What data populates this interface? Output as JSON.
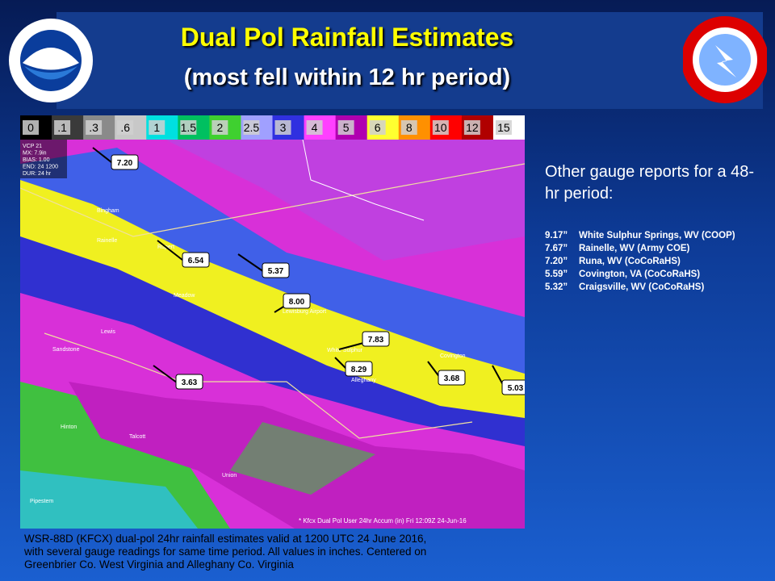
{
  "header": {
    "title": "Dual Pol Rainfall Estimates",
    "subtitle": "(most fell within 12 hr period)"
  },
  "scale": [
    {
      "label": "0",
      "color": "#000000"
    },
    {
      "label": ".1",
      "color": "#3a3a3a"
    },
    {
      "label": ".3",
      "color": "#8a8a8a"
    },
    {
      "label": ".6",
      "color": "#c8c8c8"
    },
    {
      "label": "1",
      "color": "#00e0e0"
    },
    {
      "label": "1.5",
      "color": "#00c060"
    },
    {
      "label": "2",
      "color": "#3fd030"
    },
    {
      "label": "2.5",
      "color": "#a0a0ff"
    },
    {
      "label": "3",
      "color": "#3030e0"
    },
    {
      "label": "4",
      "color": "#ff40ff"
    },
    {
      "label": "5",
      "color": "#b000b0"
    },
    {
      "label": "6",
      "color": "#ffff30"
    },
    {
      "label": "8",
      "color": "#ff9000"
    },
    {
      "label": "10",
      "color": "#ff0000"
    },
    {
      "label": "12",
      "color": "#b00000"
    },
    {
      "label": "15",
      "color": "#ffffff"
    }
  ],
  "radar_info": [
    "VCP 21",
    "MX: 7.9in",
    "BIAS: 1.00",
    "END: 24 1200",
    "DUR: 24 hr"
  ],
  "gauges": [
    "7.20",
    "6.54",
    "5.37",
    "8.00",
    "7.83",
    "8.29",
    "3.68",
    "5.03",
    "3.63"
  ],
  "places": [
    "Bingham",
    "Rainelle",
    "Rupert",
    "Meadow",
    "Lewisburg Airport",
    "White Sulphur",
    "Alleghany",
    "Covington",
    "Lewis",
    "Sandstone",
    "Hinton",
    "Talcott",
    "Union",
    "Pipestem"
  ],
  "footer_stamp": "* Kfcx Dual Pol User 24hr Accum (in) Fri 12:09Z 24-Jun-16",
  "side": {
    "heading": "Other gauge reports for a 48-hr period:",
    "rows": [
      [
        "9.17”",
        "White Sulphur Springs, WV (COOP)"
      ],
      [
        "7.67”",
        "Rainelle, WV (Army COE)"
      ],
      [
        "7.20”",
        "Runa, WV (CoCoRaHS)"
      ],
      [
        "5.59”",
        "Covington,  VA (CoCoRaHS)"
      ],
      [
        "5.32”",
        "Craigsville, WV (CoCoRaHS)"
      ]
    ]
  },
  "caption": [
    "WSR-88D (KFCX) dual-pol 24hr rainfall estimates valid at 1200 UTC 24 June 2016,",
    "with several gauge readings for same time period. All values in inches. Centered on",
    "Greenbrier Co. West Virginia and Alleghany Co. Virginia"
  ]
}
